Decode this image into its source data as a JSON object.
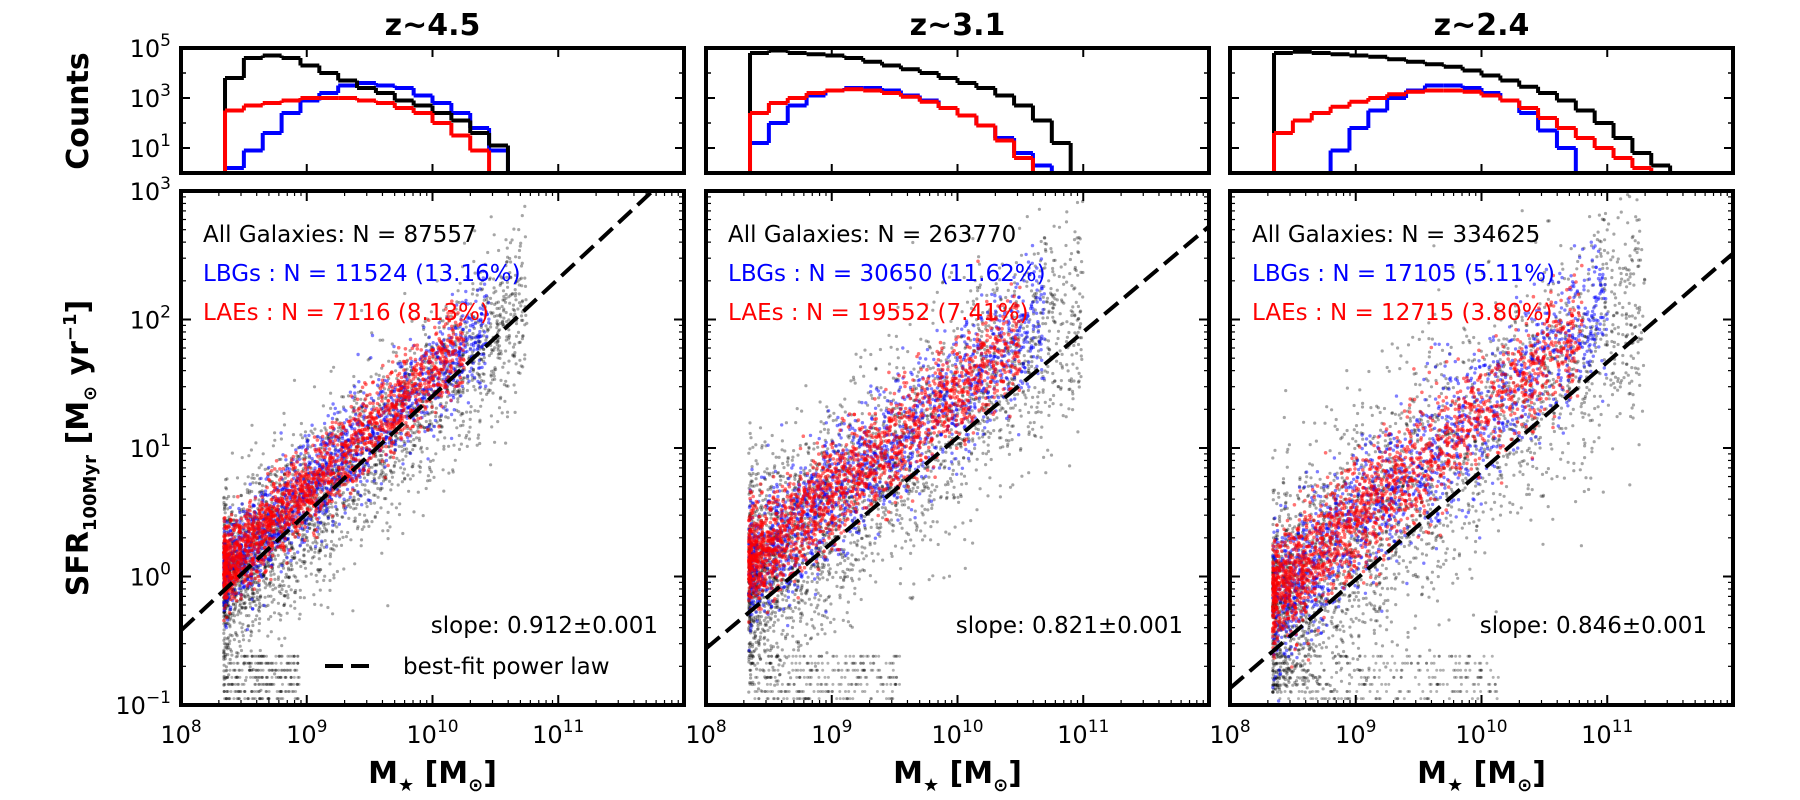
{
  "chart_data": {
    "type": "scatter",
    "layout": "3 columns, histogram on top, scatter below",
    "ylabel_hist": "Counts",
    "ylabel_main": "SFR",
    "ylabel_main_sub": "100Myr",
    "ylabel_main_units": " [M",
    "ylabel_main_units2": " yr",
    "ylabel_main_exp": "−1",
    "ylabel_main_close": "]",
    "xlabel_main": "M",
    "xlabel_star": "★",
    "xlabel_units": " [M",
    "xlabel_close": "]",
    "sun_symbol": "⊙",
    "x_axis": {
      "scale": "log",
      "range": [
        100000000.0,
        1000000000000.0
      ],
      "tick_exponents": [
        8,
        9,
        10,
        11
      ]
    },
    "y_hist_axis": {
      "scale": "log",
      "range": [
        1,
        100000.0
      ],
      "tick_exponents": [
        1,
        3,
        5
      ]
    },
    "y_main_axis": {
      "scale": "log",
      "range": [
        0.1,
        1000
      ],
      "tick_exponents": [
        -1,
        0,
        1,
        2,
        3
      ]
    },
    "tick_base": "10",
    "hist_log_bins": [
      8.35,
      8.5,
      8.65,
      8.8,
      8.95,
      9.1,
      9.25,
      9.4,
      9.55,
      9.7,
      9.85,
      10.0,
      10.15,
      10.3,
      10.45,
      10.6,
      10.75,
      10.9,
      11.05,
      11.2,
      11.35,
      11.5,
      11.65,
      11.8
    ],
    "legend_line_label": "best-fit power law",
    "colors": {
      "all": "#000000",
      "lbg": "#0000ff",
      "lae": "#ff0000"
    },
    "panels": [
      {
        "title": "z~4.5",
        "all_label": "All Galaxies: N = 87557",
        "lbg_label": "LBGs : N = 11524 (13.16%)",
        "lae_label": "LAEs : N = 7116 (8.13%)",
        "slope_label": "slope: 0.912±0.001",
        "show_legend": true,
        "fit": {
          "slope": 0.912,
          "log_sfr_at_8": -0.42
        },
        "cloud": {
          "x_max": 10.75,
          "intercept": -0.32,
          "slope": 0.912,
          "spread_lower": 0.33,
          "spread_upper": 0.2
        },
        "hist_all": [
          3.8,
          4.6,
          4.7,
          4.6,
          4.3,
          4.0,
          3.7,
          3.4,
          3.2,
          2.9,
          2.7,
          2.4,
          2.1,
          1.6,
          1.1,
          null,
          null,
          null,
          null,
          null,
          null,
          null,
          null
        ],
        "hist_lbg": [
          0.2,
          0.9,
          1.6,
          2.4,
          2.9,
          3.2,
          3.5,
          3.6,
          3.5,
          3.4,
          3.1,
          2.8,
          2.4,
          1.8,
          0.9,
          0.0,
          null,
          null,
          null,
          null,
          null,
          null,
          null
        ],
        "hist_lae": [
          2.5,
          2.7,
          2.8,
          2.9,
          3.0,
          3.0,
          3.0,
          2.9,
          2.8,
          2.6,
          2.4,
          2.0,
          1.5,
          0.9,
          0.0,
          null,
          null,
          null,
          null,
          null,
          null,
          null,
          null
        ]
      },
      {
        "title": "z~3.1",
        "all_label": "All Galaxies: N = 263770",
        "lbg_label": "LBGs : N = 30650 (11.62%)",
        "lae_label": "LAEs : N = 19552 (7.41%)",
        "slope_label": "slope: 0.821±0.001",
        "show_legend": false,
        "fit": {
          "slope": 0.821,
          "log_sfr_at_8": -0.56
        },
        "cloud": {
          "x_max": 11.0,
          "intercept": -0.26,
          "slope": 0.821,
          "spread_lower": 0.42,
          "spread_upper": 0.25
        },
        "hist_all": [
          4.8,
          4.9,
          4.8,
          4.75,
          4.7,
          4.6,
          4.45,
          4.3,
          4.15,
          4.0,
          3.8,
          3.6,
          3.4,
          3.1,
          2.7,
          2.1,
          1.2,
          null,
          null,
          null,
          null,
          null,
          null
        ],
        "hist_lbg": [
          1.2,
          2.0,
          2.7,
          3.1,
          3.3,
          3.4,
          3.4,
          3.3,
          3.1,
          2.9,
          2.6,
          2.3,
          1.9,
          1.4,
          0.8,
          0.3,
          0.0,
          null,
          null,
          null,
          null,
          null,
          null
        ],
        "hist_lae": [
          2.4,
          2.8,
          3.0,
          3.2,
          3.3,
          3.35,
          3.3,
          3.2,
          3.05,
          2.85,
          2.6,
          2.3,
          1.9,
          1.3,
          0.6,
          null,
          null,
          null,
          null,
          null,
          null,
          null,
          null
        ]
      },
      {
        "title": "z~2.4",
        "all_label": "All Galaxies: N = 334625",
        "lbg_label": "LBGs : N = 17105 (5.11%)",
        "lae_label": "LAEs : N = 12715 (3.80%)",
        "slope_label": "slope: 0.846±0.001",
        "show_legend": false,
        "fit": {
          "slope": 0.846,
          "log_sfr_at_8": -0.87
        },
        "cloud": {
          "x_max": 11.3,
          "intercept": -0.5,
          "slope": 0.846,
          "spread_lower": 0.5,
          "spread_upper": 0.28
        },
        "hist_all": [
          4.8,
          4.85,
          4.8,
          4.75,
          4.7,
          4.65,
          4.55,
          4.45,
          4.35,
          4.25,
          4.1,
          3.9,
          3.7,
          3.45,
          3.2,
          2.9,
          2.5,
          2.0,
          1.4,
          0.8,
          0.3,
          0.0,
          null
        ],
        "hist_lbg": [
          null,
          null,
          0.0,
          0.9,
          1.8,
          2.5,
          3.0,
          3.3,
          3.5,
          3.5,
          3.4,
          3.2,
          2.9,
          2.4,
          1.7,
          1.0,
          0.0,
          null,
          null,
          null,
          null,
          null,
          null
        ],
        "hist_lae": [
          1.6,
          2.1,
          2.4,
          2.65,
          2.85,
          3.0,
          3.15,
          3.25,
          3.3,
          3.3,
          3.25,
          3.1,
          2.9,
          2.6,
          2.2,
          1.8,
          1.4,
          1.0,
          0.6,
          0.2,
          null,
          null,
          null
        ]
      }
    ]
  }
}
